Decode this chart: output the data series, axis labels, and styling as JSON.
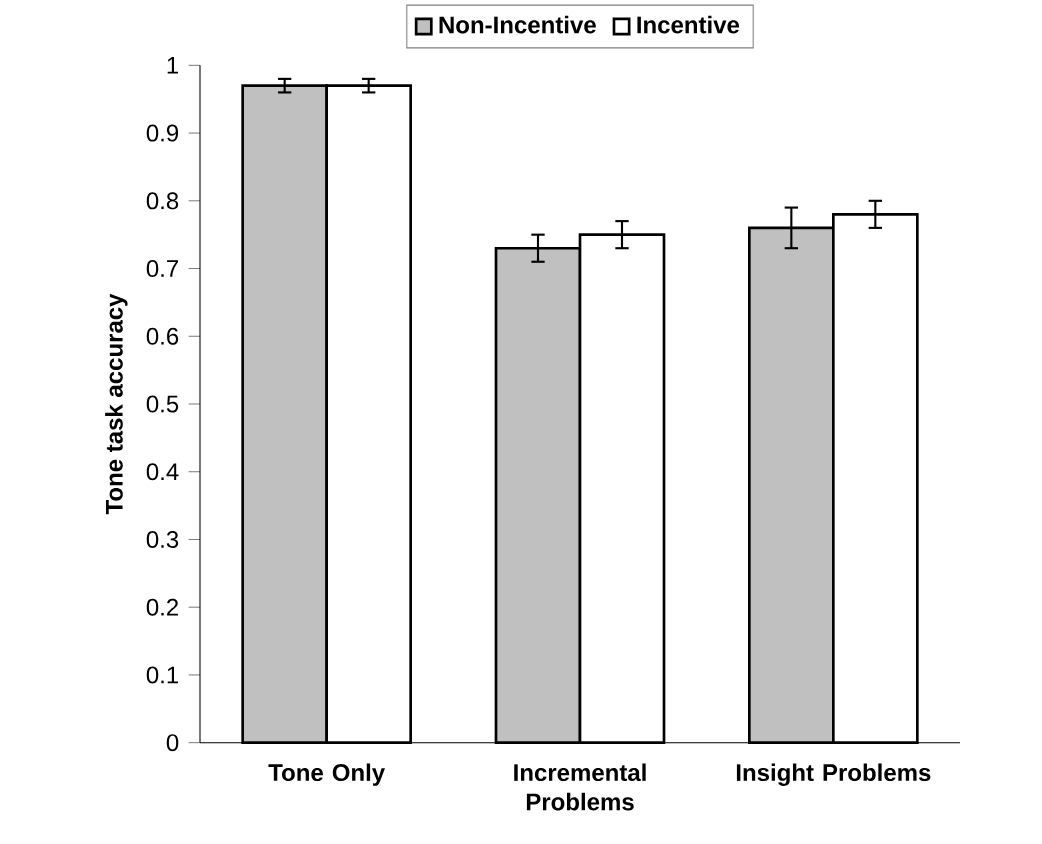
{
  "chart_data": {
    "type": "bar",
    "ylabel": "Tone task accuracy",
    "categories": [
      "Tone Only",
      "Incremental Problems",
      "Insight Problems"
    ],
    "series": [
      {
        "name": "Non-Incentive",
        "color": "#c0c0c0",
        "values": [
          0.97,
          0.73,
          0.76
        ],
        "errors": [
          0.01,
          0.02,
          0.03
        ]
      },
      {
        "name": "Incentive",
        "color": "#ffffff",
        "values": [
          0.97,
          0.75,
          0.78
        ],
        "errors": [
          0.01,
          0.02,
          0.02
        ]
      }
    ],
    "ylim": [
      0,
      1
    ],
    "yticks": [
      0,
      0.1,
      0.2,
      0.3,
      0.4,
      0.5,
      0.6,
      0.7,
      0.8,
      0.9,
      1
    ],
    "legend": "top",
    "grid": false
  }
}
